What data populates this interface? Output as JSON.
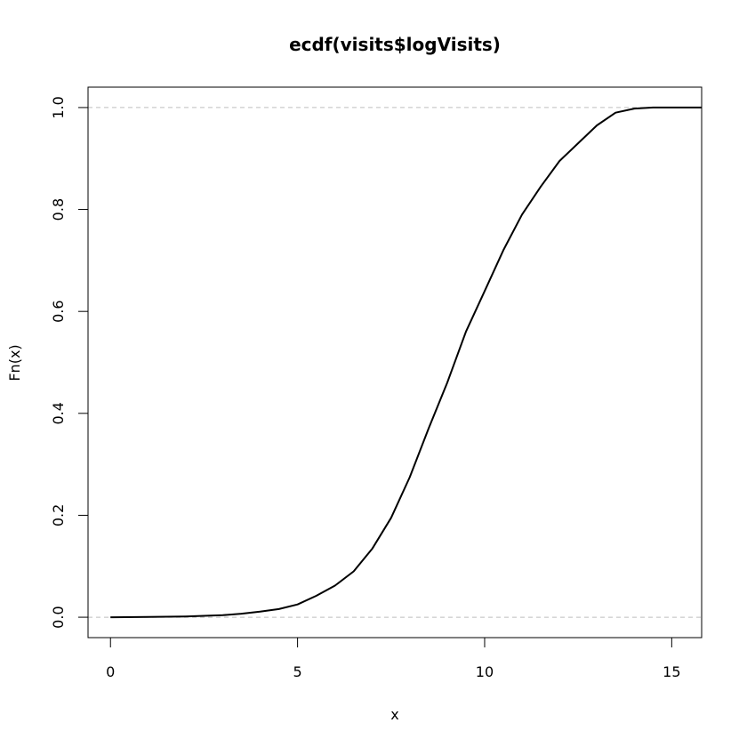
{
  "chart_data": {
    "type": "line",
    "title": "ecdf(visits$logVisits)",
    "xlabel": "x",
    "ylabel": "Fn(x)",
    "xlim": [
      -0.6,
      15.8
    ],
    "ylim": [
      -0.04,
      1.04
    ],
    "x_ticks": [
      0,
      5,
      10,
      15
    ],
    "x_tick_labels": [
      "0",
      "5",
      "10",
      "15"
    ],
    "y_ticks": [
      0,
      0.2,
      0.4,
      0.6,
      0.8,
      1.0
    ],
    "y_tick_labels": [
      "0.0",
      "0.2",
      "0.4",
      "0.6",
      "0.8",
      "1.0"
    ],
    "reference_lines": [
      0,
      1
    ],
    "grid": false,
    "series": [
      {
        "x": [
          0,
          1,
          2,
          3,
          3.5,
          4,
          4.5,
          5,
          5.5,
          6,
          6.5,
          7,
          7.5,
          8,
          8.5,
          9,
          9.5,
          10,
          10.5,
          11,
          11.5,
          12,
          12.5,
          13,
          13.5,
          14,
          14.5,
          15,
          15.8
        ],
        "y": [
          0,
          0.0005,
          0.0015,
          0.004,
          0.007,
          0.011,
          0.016,
          0.025,
          0.042,
          0.062,
          0.09,
          0.135,
          0.195,
          0.275,
          0.37,
          0.46,
          0.56,
          0.64,
          0.72,
          0.79,
          0.845,
          0.895,
          0.93,
          0.965,
          0.99,
          0.998,
          1.0,
          1.0,
          1.0
        ],
        "color": "#000000"
      }
    ]
  }
}
